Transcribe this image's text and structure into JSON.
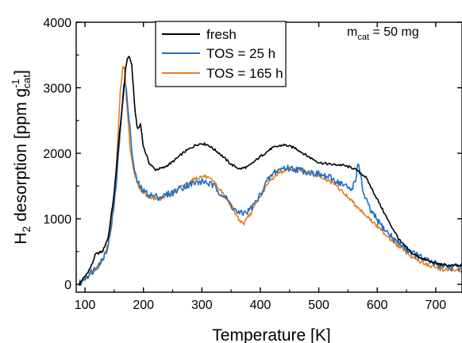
{
  "chart_data": {
    "type": "line",
    "xlabel": "Temperature [K]",
    "ylabel": {
      "prefix": "H",
      "sub": "2",
      "mid": " desorption [ppm g",
      "sup": "-1",
      "sub2": "cat",
      "suffix": "]"
    },
    "xlim": [
      85,
      745
    ],
    "ylim": [
      -120,
      4000
    ],
    "xticks": [
      100,
      200,
      300,
      400,
      500,
      600,
      700
    ],
    "yticks": [
      0,
      1000,
      2000,
      3000,
      4000
    ],
    "grid": false,
    "legend_position": "top-left",
    "annotation": {
      "prefix": "m",
      "sub": "cat",
      "suffix": " = 50 mg"
    },
    "series": [
      {
        "name": "fresh",
        "color": "#000000",
        "points": [
          [
            90,
            0
          ],
          [
            100,
            120
          ],
          [
            110,
            260
          ],
          [
            118,
            460
          ],
          [
            130,
            500
          ],
          [
            140,
            720
          ],
          [
            150,
            1400
          ],
          [
            160,
            2400
          ],
          [
            165,
            2800
          ],
          [
            170,
            3350
          ],
          [
            175,
            3500
          ],
          [
            180,
            3350
          ],
          [
            185,
            2700
          ],
          [
            190,
            2350
          ],
          [
            195,
            2450
          ],
          [
            200,
            2100
          ],
          [
            210,
            1850
          ],
          [
            220,
            1750
          ],
          [
            235,
            1780
          ],
          [
            250,
            1870
          ],
          [
            270,
            2020
          ],
          [
            290,
            2130
          ],
          [
            300,
            2150
          ],
          [
            310,
            2130
          ],
          [
            330,
            2000
          ],
          [
            350,
            1830
          ],
          [
            365,
            1760
          ],
          [
            380,
            1800
          ],
          [
            400,
            1950
          ],
          [
            420,
            2080
          ],
          [
            440,
            2130
          ],
          [
            460,
            2080
          ],
          [
            480,
            1960
          ],
          [
            500,
            1860
          ],
          [
            520,
            1830
          ],
          [
            540,
            1820
          ],
          [
            560,
            1770
          ],
          [
            580,
            1640
          ],
          [
            600,
            1300
          ],
          [
            620,
            950
          ],
          [
            640,
            650
          ],
          [
            660,
            470
          ],
          [
            680,
            380
          ],
          [
            700,
            320
          ],
          [
            720,
            290
          ],
          [
            745,
            280
          ]
        ]
      },
      {
        "name": "TOS = 25 h",
        "color": "#1f6fbf",
        "points": [
          [
            90,
            0
          ],
          [
            100,
            100
          ],
          [
            115,
            220
          ],
          [
            130,
            380
          ],
          [
            140,
            600
          ],
          [
            150,
            1200
          ],
          [
            155,
            1700
          ],
          [
            160,
            2300
          ],
          [
            165,
            2900
          ],
          [
            168,
            3100
          ],
          [
            170,
            3000
          ],
          [
            175,
            2600
          ],
          [
            180,
            2050
          ],
          [
            185,
            1700
          ],
          [
            190,
            1550
          ],
          [
            200,
            1420
          ],
          [
            215,
            1350
          ],
          [
            230,
            1330
          ],
          [
            250,
            1400
          ],
          [
            270,
            1500
          ],
          [
            290,
            1550
          ],
          [
            305,
            1570
          ],
          [
            320,
            1500
          ],
          [
            340,
            1330
          ],
          [
            355,
            1150
          ],
          [
            365,
            1070
          ],
          [
            380,
            1120
          ],
          [
            395,
            1280
          ],
          [
            410,
            1550
          ],
          [
            425,
            1720
          ],
          [
            440,
            1780
          ],
          [
            460,
            1760
          ],
          [
            480,
            1720
          ],
          [
            500,
            1680
          ],
          [
            520,
            1620
          ],
          [
            540,
            1530
          ],
          [
            555,
            1440
          ],
          [
            562,
            1580
          ],
          [
            567,
            1800
          ],
          [
            572,
            1700
          ],
          [
            576,
            1380
          ],
          [
            590,
            1100
          ],
          [
            610,
            860
          ],
          [
            630,
            680
          ],
          [
            650,
            540
          ],
          [
            670,
            430
          ],
          [
            690,
            340
          ],
          [
            710,
            290
          ],
          [
            730,
            260
          ],
          [
            745,
            280
          ]
        ]
      },
      {
        "name": "TOS = 165 h",
        "color": "#e67e22",
        "points": [
          [
            90,
            0
          ],
          [
            100,
            90
          ],
          [
            115,
            210
          ],
          [
            130,
            360
          ],
          [
            140,
            620
          ],
          [
            150,
            1300
          ],
          [
            155,
            2000
          ],
          [
            160,
            2900
          ],
          [
            165,
            3320
          ],
          [
            168,
            3300
          ],
          [
            172,
            2700
          ],
          [
            178,
            2000
          ],
          [
            185,
            1650
          ],
          [
            195,
            1440
          ],
          [
            210,
            1330
          ],
          [
            230,
            1310
          ],
          [
            250,
            1400
          ],
          [
            270,
            1520
          ],
          [
            290,
            1620
          ],
          [
            305,
            1650
          ],
          [
            320,
            1560
          ],
          [
            335,
            1400
          ],
          [
            350,
            1200
          ],
          [
            365,
            970
          ],
          [
            372,
            930
          ],
          [
            385,
            1100
          ],
          [
            400,
            1350
          ],
          [
            415,
            1560
          ],
          [
            430,
            1700
          ],
          [
            450,
            1760
          ],
          [
            470,
            1740
          ],
          [
            490,
            1690
          ],
          [
            510,
            1610
          ],
          [
            530,
            1500
          ],
          [
            550,
            1330
          ],
          [
            570,
            1150
          ],
          [
            590,
            970
          ],
          [
            610,
            800
          ],
          [
            630,
            630
          ],
          [
            650,
            480
          ],
          [
            670,
            360
          ],
          [
            690,
            280
          ],
          [
            710,
            230
          ],
          [
            730,
            210
          ],
          [
            745,
            205
          ]
        ]
      }
    ]
  }
}
